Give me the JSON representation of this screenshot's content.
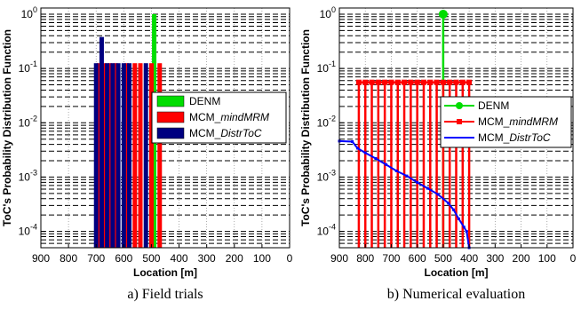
{
  "colors": {
    "denm": "#00dd00",
    "mind_mrm": "#ff0000",
    "distr_toc": "#0000ff",
    "distr_toc_bar": "#000080",
    "grid": "#000000",
    "axis": "#000000"
  },
  "chart_data": [
    {
      "type": "bar",
      "caption": "a) Field trials",
      "xlabel": "Location [m]",
      "ylabel": "ToC's Probability Distribution Function",
      "xlim": [
        900,
        0
      ],
      "x_reversed": true,
      "xticks": [
        "900",
        "800",
        "700",
        "600",
        "500",
        "400",
        "300",
        "200",
        "100",
        "0"
      ],
      "ylim": [
        5e-05,
        1.3
      ],
      "yscale": "log",
      "grid": true,
      "legend_position": "right",
      "series": [
        {
          "name": "DENM",
          "color": "#00dd00",
          "x": [
            490
          ],
          "y": [
            1.0
          ]
        },
        {
          "name": "MCM_mindMRM",
          "color": "#ff0000",
          "x": [
            690,
            670,
            650,
            630,
            590,
            560,
            540,
            500,
            470
          ],
          "y": [
            0.125,
            0.125,
            0.125,
            0.125,
            0.125,
            0.125,
            0.125,
            0.125,
            0.125
          ]
        },
        {
          "name": "MCM_DistrToC",
          "color": "#000080",
          "x": [
            700,
            680,
            660,
            640,
            620,
            600,
            580,
            520
          ],
          "y": [
            0.125,
            0.38,
            0.125,
            0.125,
            0.125,
            0.125,
            0.125,
            0.125
          ]
        }
      ]
    },
    {
      "type": "line",
      "caption": "b) Numerical evaluation",
      "xlabel": "Location [m]",
      "ylabel": "ToC's Probability Distribution Function",
      "xlim": [
        900,
        0
      ],
      "x_reversed": true,
      "xticks": [
        "900",
        "800",
        "700",
        "600",
        "500",
        "400",
        "300",
        "200",
        "100",
        "0"
      ],
      "ylim": [
        5e-05,
        1.3
      ],
      "yscale": "log",
      "grid": true,
      "legend_position": "right",
      "series": [
        {
          "name": "DENM",
          "color": "#00dd00",
          "style": "stem",
          "x": [
            500
          ],
          "y": [
            1.0
          ]
        },
        {
          "name": "MCM_mindMRM",
          "color": "#ff0000",
          "style": "stem",
          "x": [
            825,
            800,
            775,
            750,
            725,
            700,
            675,
            650,
            625,
            600,
            575,
            550,
            525,
            500,
            475,
            450,
            425,
            400
          ],
          "y": [
            0.0556,
            0.0556,
            0.0556,
            0.0556,
            0.0556,
            0.0556,
            0.0556,
            0.0556,
            0.0556,
            0.0556,
            0.0556,
            0.0556,
            0.0556,
            0.0556,
            0.0556,
            0.0556,
            0.0556,
            0.0556
          ]
        },
        {
          "name": "MCM_DistrToC",
          "color": "#0000ff",
          "style": "line",
          "x": [
            900,
            850,
            830,
            800,
            760,
            720,
            680,
            640,
            600,
            560,
            520,
            480,
            460,
            440,
            420,
            410,
            400
          ],
          "y": [
            0.0046,
            0.0045,
            0.0034,
            0.0028,
            0.0022,
            0.0017,
            0.0013,
            0.00105,
            0.0008,
            0.00062,
            0.00048,
            0.00033,
            0.00025,
            0.00017,
            0.00012,
            0.0001,
            5e-05
          ]
        }
      ]
    }
  ],
  "legend_labels": {
    "denm": "DENM",
    "mcm_prefix": "MCM_",
    "mind_suffix": "mindMRM",
    "distr_suffix": "DistrToC"
  },
  "y_tick_labels": {
    "exp": [
      "0",
      "-1",
      "-2",
      "-3",
      "-4"
    ]
  }
}
